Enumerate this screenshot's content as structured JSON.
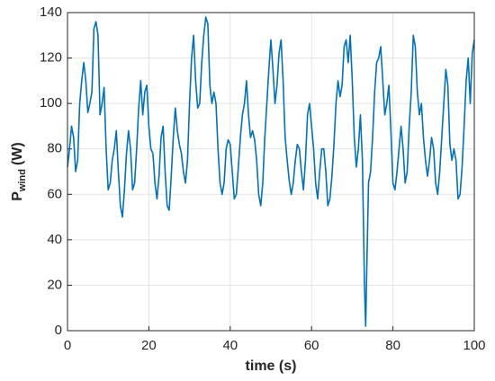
{
  "chart_data": {
    "type": "line",
    "x_label": "time (s)",
    "y_label": "P",
    "y_label_sub": "wind",
    "y_label_unit": "(W)",
    "xlim": [
      0,
      100
    ],
    "xticks": [
      0,
      20,
      40,
      60,
      80,
      100
    ],
    "ylim": [
      0,
      140
    ],
    "yticks": [
      0,
      20,
      40,
      60,
      80,
      100,
      120,
      140
    ],
    "grid": true,
    "series": [
      {
        "color": "#0072bd",
        "x": [
          0,
          0.5,
          1,
          1.5,
          2,
          2.5,
          3,
          3.5,
          4,
          4.5,
          5,
          5.5,
          6,
          6.5,
          7,
          7.5,
          8,
          8.5,
          9,
          9.5,
          10,
          10.5,
          11,
          11.5,
          12,
          12.5,
          13,
          13.5,
          14,
          14.5,
          15,
          15.5,
          16,
          16.5,
          17,
          17.5,
          18,
          18.5,
          19,
          19.5,
          20,
          20.5,
          21,
          21.5,
          22,
          22.5,
          23,
          23.5,
          24,
          24.5,
          25,
          25.5,
          26,
          26.5,
          27,
          27.5,
          28,
          28.5,
          29,
          29.5,
          30,
          30.5,
          31,
          31.5,
          32,
          32.5,
          33,
          33.5,
          34,
          34.5,
          35,
          35.5,
          36,
          36.5,
          37,
          37.5,
          38,
          38.5,
          39,
          39.5,
          40,
          40.5,
          41,
          41.5,
          42,
          42.5,
          43,
          43.5,
          44,
          44.5,
          45,
          45.5,
          46,
          46.5,
          47,
          47.5,
          48,
          48.5,
          49,
          49.5,
          50,
          50.5,
          51,
          51.5,
          52,
          52.5,
          53,
          53.5,
          54,
          54.5,
          55,
          55.5,
          56,
          56.5,
          57,
          57.5,
          58,
          58.5,
          59,
          59.5,
          60,
          60.5,
          61,
          61.5,
          62,
          62.5,
          63,
          63.5,
          64,
          64.5,
          65,
          65.5,
          66,
          66.5,
          67,
          67.5,
          68,
          68.5,
          69,
          69.5,
          70,
          70.5,
          71,
          71.5,
          72,
          72.5,
          73,
          73.3,
          73.6,
          74,
          74.5,
          75,
          75.5,
          76,
          76.5,
          77,
          77.5,
          78,
          78.5,
          79,
          79.5,
          80,
          80.5,
          81,
          81.5,
          82,
          82.5,
          83,
          83.5,
          84,
          84.5,
          85,
          85.5,
          86,
          86.5,
          87,
          87.5,
          88,
          88.5,
          89,
          89.5,
          90,
          90.5,
          91,
          91.5,
          92,
          92.5,
          93,
          93.5,
          94,
          94.5,
          95,
          95.5,
          96,
          96.5,
          97,
          97.5,
          98,
          98.5,
          99,
          99.5,
          100
        ],
        "values": [
          72,
          80,
          90,
          85,
          70,
          75,
          100,
          110,
          118,
          110,
          96,
          100,
          105,
          133,
          136,
          130,
          95,
          100,
          107,
          80,
          62,
          65,
          75,
          80,
          88,
          70,
          55,
          50,
          62,
          78,
          88,
          80,
          62,
          65,
          80,
          98,
          110,
          95,
          105,
          108,
          90,
          80,
          78,
          65,
          58,
          68,
          85,
          90,
          70,
          55,
          53,
          68,
          85,
          98,
          88,
          82,
          78,
          70,
          65,
          75,
          100,
          120,
          130,
          110,
          98,
          100,
          118,
          130,
          138,
          135,
          108,
          100,
          105,
          100,
          80,
          65,
          60,
          65,
          80,
          84,
          82,
          70,
          58,
          60,
          72,
          85,
          95,
          100,
          110,
          95,
          85,
          88,
          84,
          75,
          60,
          55,
          65,
          85,
          100,
          115,
          128,
          115,
          100,
          108,
          122,
          128,
          110,
          85,
          75,
          66,
          60,
          65,
          75,
          82,
          80,
          70,
          62,
          75,
          95,
          100,
          90,
          80,
          65,
          58,
          70,
          80,
          80,
          70,
          55,
          58,
          68,
          82,
          100,
          110,
          103,
          108,
          125,
          128,
          118,
          130,
          110,
          85,
          72,
          80,
          95,
          75,
          20,
          2,
          30,
          65,
          70,
          85,
          105,
          118,
          120,
          125,
          110,
          95,
          100,
          108,
          88,
          65,
          62,
          70,
          80,
          90,
          80,
          65,
          70,
          90,
          105,
          130,
          125,
          105,
          95,
          100,
          85,
          75,
          68,
          75,
          85,
          80,
          65,
          60,
          70,
          85,
          100,
          115,
          108,
          82,
          75,
          80,
          75,
          58,
          60,
          72,
          90,
          110,
          120,
          100,
          122,
          128
        ]
      }
    ]
  }
}
